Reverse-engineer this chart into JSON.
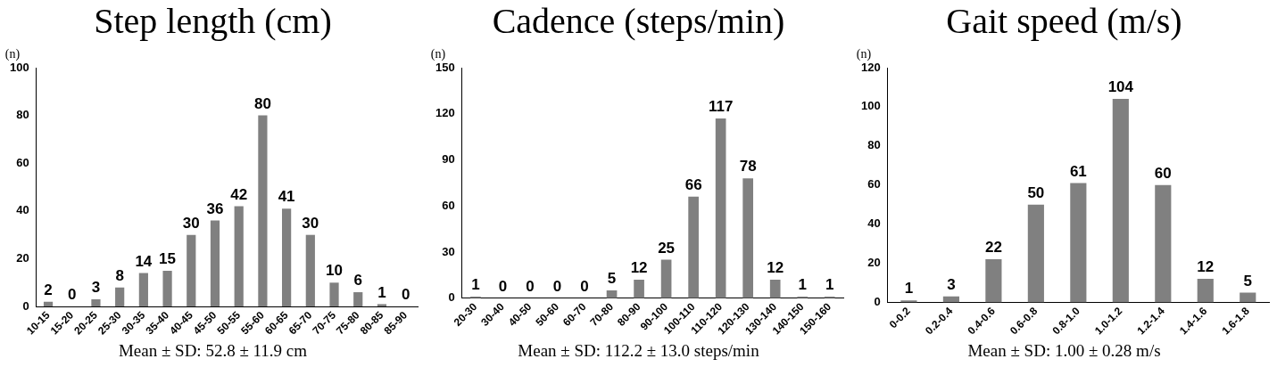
{
  "chart_data": [
    {
      "type": "bar",
      "title": "Step length (cm)",
      "ylabel": "(n)",
      "categories": [
        "10-15",
        "15-20",
        "20-25",
        "25-30",
        "30-35",
        "35-40",
        "40-45",
        "45-50",
        "50-55",
        "55-60",
        "60-65",
        "65-70",
        "70-75",
        "75-80",
        "80-85",
        "85-90"
      ],
      "values": [
        2,
        0,
        3,
        8,
        14,
        15,
        30,
        36,
        42,
        80,
        41,
        30,
        10,
        6,
        1,
        0
      ],
      "color": "#808080",
      "ylim": [
        0,
        100
      ],
      "yticks": [
        0,
        20,
        40,
        60,
        80,
        100
      ],
      "data_labels": true,
      "grid": false,
      "legend": false,
      "annotations": [
        "Mean ± SD: 52.8 ± 11.9 cm"
      ]
    },
    {
      "type": "bar",
      "title": "Cadence (steps/min)",
      "ylabel": "(n)",
      "categories": [
        "20-30",
        "30-40",
        "40-50",
        "50-60",
        "60-70",
        "70-80",
        "80-90",
        "90-100",
        "100-110",
        "110-120",
        "120-130",
        "130-140",
        "140-150",
        "150-160"
      ],
      "values": [
        1,
        0,
        0,
        0,
        0,
        5,
        12,
        25,
        66,
        117,
        78,
        12,
        1,
        1
      ],
      "color": "#808080",
      "ylim": [
        0,
        150
      ],
      "yticks": [
        0,
        30,
        60,
        90,
        120,
        150
      ],
      "data_labels": true,
      "grid": false,
      "legend": false,
      "annotations": [
        "Mean ± SD: 112.2 ± 13.0 steps/min"
      ]
    },
    {
      "type": "bar",
      "title": "Gait speed (m/s)",
      "ylabel": "(n)",
      "categories": [
        "0-0.2",
        "0.2-0.4",
        "0.4-0.6",
        "0.6-0.8",
        "0.8-1.0",
        "1.0-1.2",
        "1.2-1.4",
        "1.4-1.6",
        "1.6-1.8"
      ],
      "values": [
        1,
        3,
        22,
        50,
        61,
        104,
        60,
        12,
        5
      ],
      "color": "#808080",
      "ylim": [
        0,
        120
      ],
      "yticks": [
        0,
        20,
        40,
        60,
        80,
        100,
        120
      ],
      "data_labels": true,
      "grid": false,
      "legend": false,
      "annotations": [
        "Mean ± SD: 1.00 ± 0.28 m/s"
      ]
    }
  ]
}
